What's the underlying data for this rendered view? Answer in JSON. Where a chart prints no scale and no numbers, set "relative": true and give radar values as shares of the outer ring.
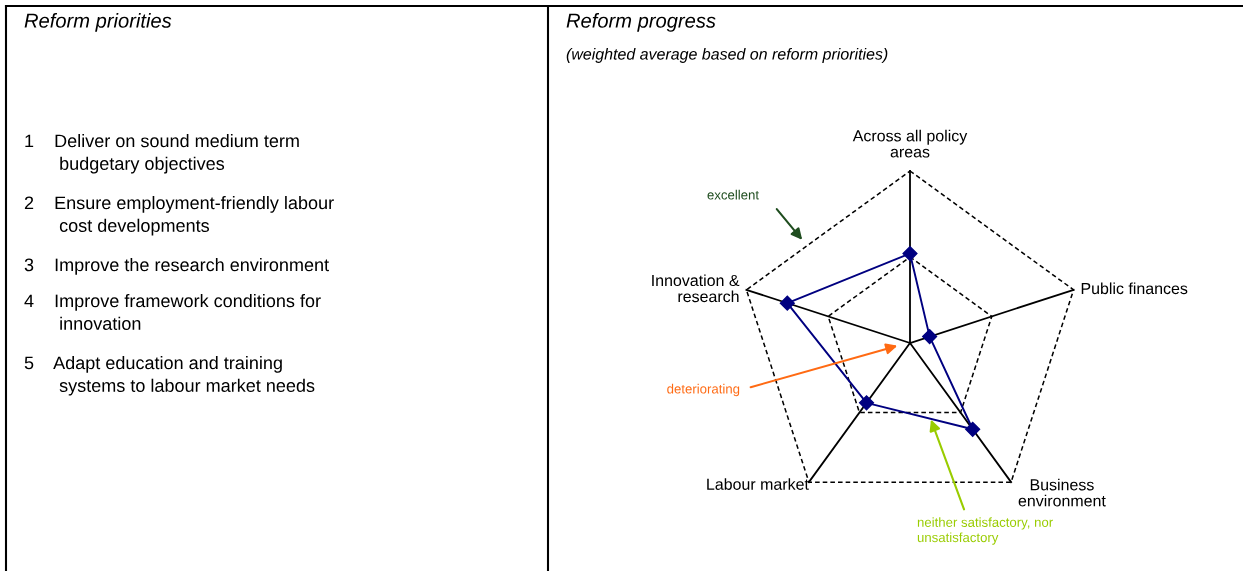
{
  "chart_data": [
    {
      "type": "other",
      "title": "Reform priorities",
      "annotations": [
        "1 Deliver on sound medium term\nbudgetary objectives",
        "2 Ensure employment-friendly labour\ncost developments",
        "3 Improve the research environment",
        "4 Improve framework conditions for\ninnovation",
        "5 Adapt education and training\nsystems to labour market needs"
      ]
    },
    {
      "type": "radar",
      "title": "Reform progress",
      "subtitle": "(weighted average based on reform priorities)",
      "categories": [
        "Across all policy\nareas",
        "Public finances",
        "Business\nenvironment",
        "Labour market",
        "Innovation &\nresearch"
      ],
      "relative": true,
      "grid": true,
      "marker": "diamond",
      "line_style": "solid",
      "series": [
        {
          "color": "#000080",
          "values": [
            0.52,
            0.12,
            0.62,
            0.43,
            0.75
          ]
        }
      ],
      "annotations": [
        "excellent",
        "deteriorating",
        "neither satisfactory, nor\nunsatisfactory"
      ]
    }
  ]
}
